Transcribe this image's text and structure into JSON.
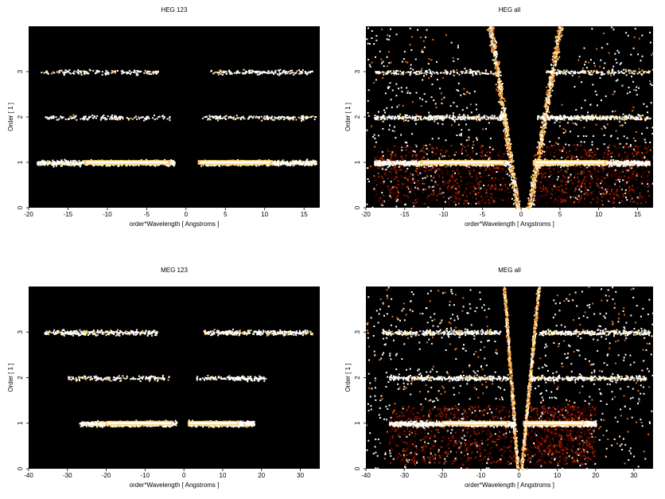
{
  "chart_data": [
    {
      "type": "heatmap",
      "title": "HEG 123",
      "xlabel": "order*Wavelength [ Angstroms ]",
      "ylabel": "Order [ 1 ]",
      "xlim": [
        -20,
        17
      ],
      "ylim": [
        0,
        4
      ],
      "xticks": [
        "-20",
        "-15",
        "-10",
        "-5",
        "0",
        "5",
        "10",
        "15"
      ],
      "yticks": [
        "0",
        "1",
        "2",
        "3"
      ],
      "colormap": [
        "#000000",
        "#4a0000",
        "#a02000",
        "#e86a10",
        "#ffd060",
        "#ffffff"
      ],
      "bands": [
        {
          "order": 1,
          "x_ranges": [
            [
              -19,
              -1.5
            ],
            [
              1.5,
              16.5
            ]
          ],
          "bright_core": [
            [
              -13,
              -2
            ],
            [
              1.5,
              11
            ]
          ],
          "peak_density": "high"
        },
        {
          "order": 2,
          "x_ranges": [
            [
              -18,
              -2
            ],
            [
              2,
              16.5
            ]
          ],
          "peak_density": "low"
        },
        {
          "order": 3,
          "x_ranges": [
            [
              -18.5,
              -3.5
            ],
            [
              3,
              16
            ]
          ],
          "peak_density": "low"
        }
      ],
      "wedges": []
    },
    {
      "type": "heatmap",
      "title": "HEG all",
      "xlabel": "order*Wavelength [ Angstroms ]",
      "ylabel": "Order [ 1 ]",
      "xlim": [
        -20,
        17
      ],
      "ylim": [
        0,
        4
      ],
      "xticks": [
        "-20",
        "-15",
        "-10",
        "-5",
        "0",
        "5",
        "10",
        "15"
      ],
      "yticks": [
        "0",
        "1",
        "2",
        "3"
      ],
      "colormap": [
        "#000000",
        "#4a0000",
        "#a02000",
        "#e86a10",
        "#ffd060",
        "#ffffff"
      ],
      "bands": [
        {
          "order": 1,
          "x_ranges": [
            [
              -19,
              -1.5
            ],
            [
              1.5,
              16.5
            ]
          ],
          "bright_core": [
            [
              -13,
              -2
            ],
            [
              1.5,
              11
            ]
          ],
          "peak_density": "high"
        },
        {
          "order": 2,
          "x_ranges": [
            [
              -19,
              -2
            ],
            [
              2,
              16.5
            ]
          ],
          "peak_density": "medium"
        },
        {
          "order": 3,
          "x_ranges": [
            [
              -19,
              -3
            ],
            [
              3,
              16.5
            ]
          ],
          "peak_density": "low"
        }
      ],
      "wedges": [
        {
          "description": "diagonal order-sorting streak",
          "from": [
            1,
            0
          ],
          "to": [
            5,
            4
          ]
        },
        {
          "description": "diagonal order-sorting streak",
          "from": [
            -0.5,
            0
          ],
          "to": [
            -4,
            4
          ]
        }
      ]
    },
    {
      "type": "heatmap",
      "title": "MEG 123",
      "xlabel": "order*Wavelength [ Angstroms ]",
      "ylabel": "Order [ 1 ]",
      "xlim": [
        -40,
        35
      ],
      "ylim": [
        0,
        4
      ],
      "xticks": [
        "-40",
        "-30",
        "-20",
        "-10",
        "0",
        "10",
        "20",
        "30"
      ],
      "yticks": [
        "0",
        "1",
        "2",
        "3"
      ],
      "colormap": [
        "#000000",
        "#4a0000",
        "#a02000",
        "#e86a10",
        "#ffd060",
        "#ffffff"
      ],
      "bands": [
        {
          "order": 1,
          "x_ranges": [
            [
              -27,
              -2
            ],
            [
              1,
              18
            ]
          ],
          "bright_core": [
            [
              -20,
              -3
            ],
            [
              1,
              14
            ]
          ],
          "peak_density": "high"
        },
        {
          "order": 2,
          "x_ranges": [
            [
              -30,
              -4
            ],
            [
              3,
              21
            ]
          ],
          "peak_density": "low"
        },
        {
          "order": 3,
          "x_ranges": [
            [
              -36,
              -7
            ],
            [
              5,
              33
            ]
          ],
          "peak_density": "medium"
        }
      ],
      "wedges": []
    },
    {
      "type": "heatmap",
      "title": "MEG all",
      "xlabel": "order*Wavelength [ Angstroms ]",
      "ylabel": "Order [ 1 ]",
      "xlim": [
        -40,
        35
      ],
      "ylim": [
        0,
        4
      ],
      "xticks": [
        "-40",
        "-30",
        "-20",
        "-10",
        "0",
        "10",
        "20",
        "30"
      ],
      "yticks": [
        "0",
        "1",
        "2",
        "3"
      ],
      "colormap": [
        "#000000",
        "#4a0000",
        "#a02000",
        "#e86a10",
        "#ffd060",
        "#ffffff"
      ],
      "bands": [
        {
          "order": 1,
          "x_ranges": [
            [
              -34,
              -1
            ],
            [
              1,
              20
            ]
          ],
          "bright_core": [
            [
              -20,
              -3
            ],
            [
              1,
              17
            ]
          ],
          "peak_density": "high"
        },
        {
          "order": 2,
          "x_ranges": [
            [
              -34,
              -3
            ],
            [
              3,
              33
            ]
          ],
          "peak_density": "medium"
        },
        {
          "order": 3,
          "x_ranges": [
            [
              -36,
              -5
            ],
            [
              5,
              34
            ]
          ],
          "peak_density": "medium"
        }
      ],
      "wedges": [
        {
          "description": "diagonal order-sorting streak",
          "from": [
            0.5,
            0
          ],
          "to": [
            5,
            4
          ]
        },
        {
          "description": "diagonal order-sorting streak",
          "from": [
            -0.5,
            0
          ],
          "to": [
            -4,
            4
          ]
        }
      ]
    }
  ]
}
